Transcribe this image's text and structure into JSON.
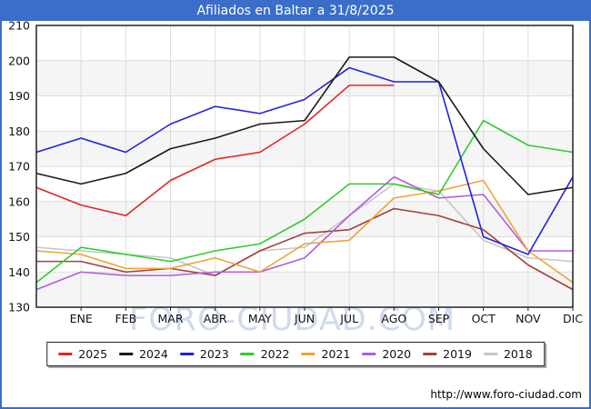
{
  "title": "Afiliados en Baltar a 31/8/2025",
  "watermark": "FORO-CIUDAD.COM",
  "footer": {
    "url_label": "http://www.foro-ciudad.com"
  },
  "colors": {
    "frame_blue": "#3a6ec8",
    "plot_band": "#f5f5f5",
    "gridline": "#dcdcdc",
    "axis_border": "#222222",
    "tick": "#222222",
    "watermark": "#c2d2ec",
    "legend_border": "#222222"
  },
  "chart_data": {
    "type": "line",
    "title": "Afiliados en Baltar a 31/8/2025",
    "x_labels": [
      "ENE",
      "FEB",
      "MAR",
      "ABR",
      "MAY",
      "JUN",
      "JUL",
      "AGO",
      "SEP",
      "OCT",
      "NOV",
      "DIC"
    ],
    "has_unlabeled_start_point": true,
    "ylim": [
      130,
      210
    ],
    "ytick_step": 10,
    "grid": true,
    "legend_position": "bottom",
    "series": [
      {
        "name": "2025",
        "color": "#e52420",
        "values": [
          164,
          159,
          156,
          166,
          172,
          174,
          182,
          193,
          193
        ]
      },
      {
        "name": "2024",
        "color": "#1a1a1a",
        "values": [
          168,
          165,
          168,
          175,
          178,
          182,
          183,
          201,
          201,
          194,
          175,
          162,
          164
        ]
      },
      {
        "name": "2023",
        "color": "#2222e0",
        "values": [
          174,
          178,
          174,
          182,
          187,
          185,
          189,
          198,
          194,
          194,
          150,
          145,
          167
        ]
      },
      {
        "name": "2022",
        "color": "#2ecc2e",
        "values": [
          137,
          147,
          145,
          143,
          146,
          148,
          155,
          165,
          165,
          162,
          183,
          176,
          174
        ]
      },
      {
        "name": "2021",
        "color": "#f0a232",
        "values": [
          146,
          145,
          141,
          141,
          144,
          140,
          148,
          149,
          161,
          163,
          166,
          146,
          137
        ]
      },
      {
        "name": "2020",
        "color": "#b05ce2",
        "values": [
          135,
          140,
          139,
          139,
          140,
          140,
          144,
          156,
          167,
          161,
          162,
          146,
          146
        ]
      },
      {
        "name": "2019",
        "color": "#a2423a",
        "values": [
          143,
          143,
          140,
          141,
          139,
          146,
          151,
          152,
          158,
          156,
          152,
          142,
          135
        ]
      },
      {
        "name": "2018",
        "color": "#c6c6c6",
        "values": [
          147,
          146,
          145,
          144,
          139,
          146,
          147,
          156,
          165,
          163,
          149,
          144,
          143
        ]
      }
    ]
  }
}
